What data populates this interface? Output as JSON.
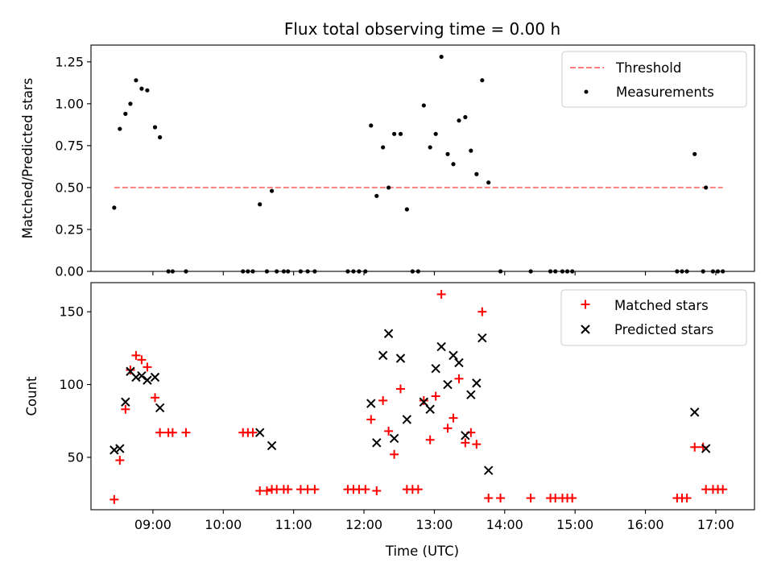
{
  "chart_data": [
    {
      "type": "scatter",
      "title": "Flux total observing time = 0.00 h",
      "ylabel": "Matched/Predicted stars",
      "xlabel": "",
      "ylim": [
        0,
        1.35
      ],
      "xlim": [
        8.12,
        17.55
      ],
      "yticks": [
        0.0,
        0.25,
        0.5,
        0.75,
        1.0,
        1.25
      ],
      "ytick_labels": [
        "0.00",
        "0.25",
        "0.50",
        "0.75",
        "1.00",
        "1.25"
      ],
      "xticks": [
        9,
        10,
        11,
        12,
        13,
        14,
        15,
        16,
        17
      ],
      "show_x_tick_labels": false,
      "legend": "top-right",
      "threshold": {
        "name": "Threshold",
        "y": 0.5,
        "x": [
          8.45,
          17.1
        ],
        "color": "#ff7f7f"
      },
      "series": [
        {
          "name": "Measurements",
          "marker": "dot",
          "color": "#000000",
          "points": [
            [
              8.45,
              0.38
            ],
            [
              8.53,
              0.85
            ],
            [
              8.61,
              0.94
            ],
            [
              8.68,
              1.0
            ],
            [
              8.76,
              1.14
            ],
            [
              8.84,
              1.09
            ],
            [
              8.92,
              1.08
            ],
            [
              9.03,
              0.86
            ],
            [
              9.1,
              0.8
            ],
            [
              9.22,
              0.0
            ],
            [
              9.28,
              0.0
            ],
            [
              9.47,
              0.0
            ],
            [
              10.28,
              0.0
            ],
            [
              10.35,
              0.0
            ],
            [
              10.42,
              0.0
            ],
            [
              10.52,
              0.4
            ],
            [
              10.62,
              0.0
            ],
            [
              10.69,
              0.48
            ],
            [
              10.76,
              0.0
            ],
            [
              10.86,
              0.0
            ],
            [
              10.92,
              0.0
            ],
            [
              11.1,
              0.0
            ],
            [
              11.2,
              0.0
            ],
            [
              11.3,
              0.0
            ],
            [
              11.77,
              0.0
            ],
            [
              11.85,
              0.0
            ],
            [
              11.93,
              0.0
            ],
            [
              12.02,
              0.0
            ],
            [
              12.1,
              0.87
            ],
            [
              12.18,
              0.45
            ],
            [
              12.27,
              0.74
            ],
            [
              12.35,
              0.5
            ],
            [
              12.43,
              0.82
            ],
            [
              12.52,
              0.82
            ],
            [
              12.61,
              0.37
            ],
            [
              12.69,
              0.0
            ],
            [
              12.77,
              0.0
            ],
            [
              12.85,
              0.99
            ],
            [
              12.94,
              0.74
            ],
            [
              13.02,
              0.82
            ],
            [
              13.1,
              1.28
            ],
            [
              13.19,
              0.7
            ],
            [
              13.27,
              0.64
            ],
            [
              13.35,
              0.9
            ],
            [
              13.44,
              0.92
            ],
            [
              13.52,
              0.72
            ],
            [
              13.6,
              0.58
            ],
            [
              13.68,
              1.14
            ],
            [
              13.77,
              0.53
            ],
            [
              13.94,
              0.0
            ],
            [
              14.37,
              0.0
            ],
            [
              14.65,
              0.0
            ],
            [
              14.72,
              0.0
            ],
            [
              14.82,
              0.0
            ],
            [
              14.89,
              0.0
            ],
            [
              14.96,
              0.0
            ],
            [
              16.45,
              0.0
            ],
            [
              16.52,
              0.0
            ],
            [
              16.59,
              0.0
            ],
            [
              16.7,
              0.7
            ],
            [
              16.82,
              0.0
            ],
            [
              16.86,
              0.5
            ],
            [
              16.96,
              0.0
            ],
            [
              17.03,
              0.0
            ],
            [
              17.1,
              0.0
            ]
          ]
        }
      ]
    },
    {
      "type": "scatter",
      "title": "",
      "xlabel": "Time (UTC)",
      "ylabel": "Count",
      "ylim": [
        14,
        170
      ],
      "xlim": [
        8.12,
        17.55
      ],
      "yticks": [
        50,
        100,
        150
      ],
      "ytick_labels": [
        "50",
        "100",
        "150"
      ],
      "xticks": [
        9,
        10,
        11,
        12,
        13,
        14,
        15,
        16,
        17
      ],
      "xtick_labels": [
        "09:00",
        "10:00",
        "11:00",
        "12:00",
        "13:00",
        "14:00",
        "15:00",
        "16:00",
        "17:00"
      ],
      "legend": "top-right",
      "series": [
        {
          "name": "Matched stars",
          "marker": "plus",
          "color": "#ff0000",
          "points": [
            [
              8.45,
              21
            ],
            [
              8.53,
              48
            ],
            [
              8.61,
              83
            ],
            [
              8.68,
              110
            ],
            [
              8.76,
              120
            ],
            [
              8.84,
              117
            ],
            [
              8.92,
              112
            ],
            [
              9.03,
              91
            ],
            [
              9.1,
              67
            ],
            [
              9.22,
              67
            ],
            [
              9.28,
              67
            ],
            [
              9.47,
              67
            ],
            [
              10.28,
              67
            ],
            [
              10.35,
              67
            ],
            [
              10.42,
              67
            ],
            [
              10.52,
              27
            ],
            [
              10.62,
              27
            ],
            [
              10.69,
              28
            ],
            [
              10.76,
              28
            ],
            [
              10.86,
              28
            ],
            [
              10.92,
              28
            ],
            [
              11.1,
              28
            ],
            [
              11.2,
              28
            ],
            [
              11.3,
              28
            ],
            [
              11.77,
              28
            ],
            [
              11.85,
              28
            ],
            [
              11.93,
              28
            ],
            [
              12.02,
              28
            ],
            [
              12.1,
              76
            ],
            [
              12.18,
              27
            ],
            [
              12.27,
              89
            ],
            [
              12.35,
              68
            ],
            [
              12.43,
              52
            ],
            [
              12.52,
              97
            ],
            [
              12.61,
              28
            ],
            [
              12.69,
              28
            ],
            [
              12.77,
              28
            ],
            [
              12.85,
              89
            ],
            [
              12.94,
              62
            ],
            [
              13.02,
              92
            ],
            [
              13.1,
              162
            ],
            [
              13.19,
              70
            ],
            [
              13.27,
              77
            ],
            [
              13.35,
              104
            ],
            [
              13.44,
              60
            ],
            [
              13.52,
              67
            ],
            [
              13.6,
              59
            ],
            [
              13.68,
              150
            ],
            [
              13.77,
              22
            ],
            [
              13.94,
              22
            ],
            [
              14.37,
              22
            ],
            [
              14.65,
              22
            ],
            [
              14.72,
              22
            ],
            [
              14.82,
              22
            ],
            [
              14.89,
              22
            ],
            [
              14.96,
              22
            ],
            [
              16.45,
              22
            ],
            [
              16.52,
              22
            ],
            [
              16.59,
              22
            ],
            [
              16.7,
              57
            ],
            [
              16.82,
              57
            ],
            [
              16.86,
              28
            ],
            [
              16.96,
              28
            ],
            [
              17.03,
              28
            ],
            [
              17.1,
              28
            ]
          ]
        },
        {
          "name": "Predicted stars",
          "marker": "x",
          "color": "#000000",
          "points": [
            [
              8.45,
              55
            ],
            [
              8.53,
              56
            ],
            [
              8.61,
              88
            ],
            [
              8.68,
              109
            ],
            [
              8.76,
              105
            ],
            [
              8.84,
              106
            ],
            [
              8.92,
              103
            ],
            [
              9.03,
              105
            ],
            [
              9.1,
              84
            ],
            [
              10.52,
              67
            ],
            [
              10.69,
              58
            ],
            [
              12.1,
              87
            ],
            [
              12.18,
              60
            ],
            [
              12.27,
              120
            ],
            [
              12.35,
              135
            ],
            [
              12.43,
              63
            ],
            [
              12.52,
              118
            ],
            [
              12.61,
              76
            ],
            [
              12.85,
              88
            ],
            [
              12.94,
              83
            ],
            [
              13.02,
              111
            ],
            [
              13.1,
              126
            ],
            [
              13.19,
              100
            ],
            [
              13.27,
              120
            ],
            [
              13.35,
              115
            ],
            [
              13.44,
              65
            ],
            [
              13.52,
              93
            ],
            [
              13.6,
              101
            ],
            [
              13.68,
              132
            ],
            [
              13.77,
              41
            ],
            [
              16.7,
              81
            ],
            [
              16.86,
              56
            ]
          ]
        }
      ]
    }
  ]
}
